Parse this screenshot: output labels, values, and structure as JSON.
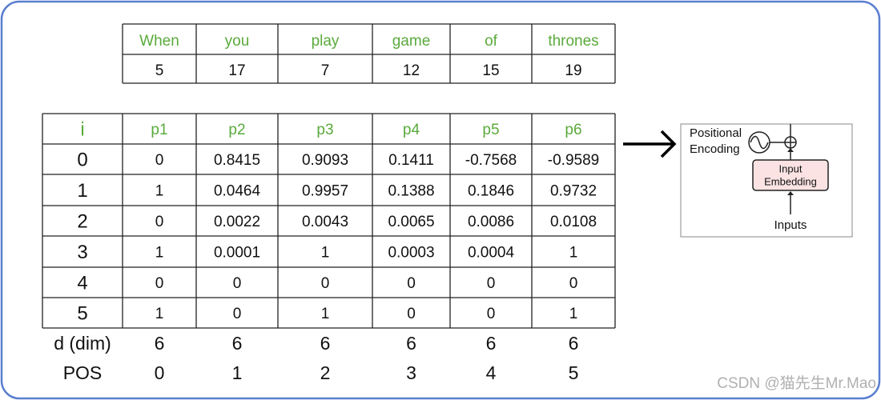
{
  "token_table": {
    "tokens": [
      "When",
      "you",
      "play",
      "game",
      "of",
      "thrones"
    ],
    "ids": [
      "5",
      "17",
      "7",
      "12",
      "15",
      "19"
    ]
  },
  "pe_table": {
    "header": [
      "i",
      "p1",
      "p2",
      "p3",
      "p4",
      "p5",
      "p6"
    ],
    "rows": [
      [
        "0",
        "0",
        "0.8415",
        "0.9093",
        "0.1411",
        "-0.7568",
        "-0.9589"
      ],
      [
        "1",
        "1",
        "0.0464",
        "0.9957",
        "0.1388",
        "0.1846",
        "0.9732"
      ],
      [
        "2",
        "0",
        "0.0022",
        "0.0043",
        "0.0065",
        "0.0086",
        "0.0108"
      ],
      [
        "3",
        "1",
        "0.0001",
        "1",
        "0.0003",
        "0.0004",
        "1"
      ],
      [
        "4",
        "0",
        "0",
        "0",
        "0",
        "0",
        "0"
      ],
      [
        "5",
        "1",
        "0",
        "1",
        "0",
        "0",
        "1"
      ]
    ]
  },
  "footer_rows": [
    [
      "d (dim)",
      "6",
      "6",
      "6",
      "6",
      "6",
      "6"
    ],
    [
      "POS",
      "0",
      "1",
      "2",
      "3",
      "4",
      "5"
    ]
  ],
  "diagram": {
    "label": [
      "Positional",
      "Encoding"
    ],
    "box": [
      "Input",
      "Embedding"
    ],
    "input": "Inputs"
  },
  "watermark": "CSDN @猫先生Mr.Mao"
}
